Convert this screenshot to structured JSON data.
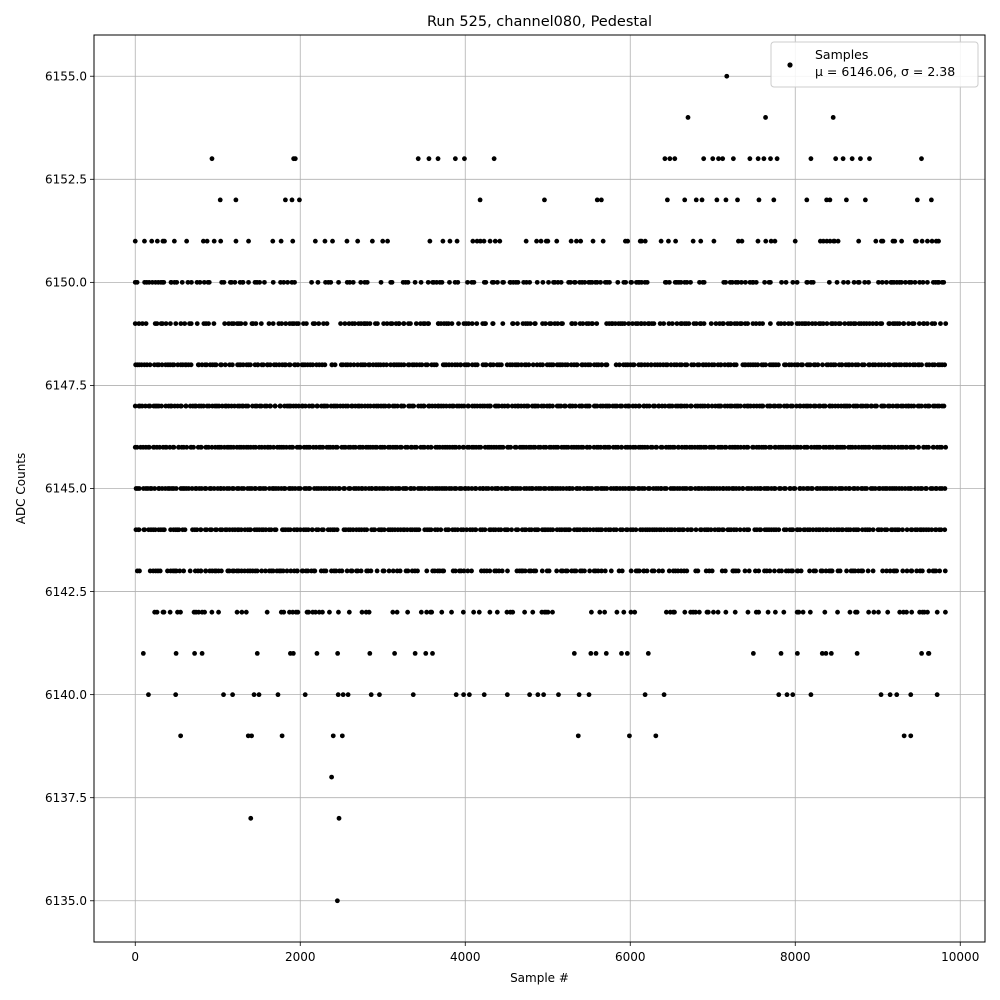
{
  "chart_data": {
    "type": "scatter",
    "title": "Run 525, channel080, Pedestal",
    "xlabel": "Sample #",
    "ylabel": "ADC Counts",
    "xlim": [
      -500,
      10300
    ],
    "ylim": [
      6134,
      6156
    ],
    "xticks": [
      0,
      2000,
      4000,
      6000,
      8000,
      10000
    ],
    "yticks": [
      6135.0,
      6137.5,
      6140.0,
      6142.5,
      6145.0,
      6147.5,
      6150.0,
      6152.5,
      6155.0
    ],
    "xtick_labels": [
      "0",
      "2000",
      "4000",
      "6000",
      "8000",
      "10000"
    ],
    "ytick_labels": [
      "6135.0",
      "6137.5",
      "6140.0",
      "6142.5",
      "6145.0",
      "6147.5",
      "6150.0",
      "6152.5",
      "6155.0"
    ],
    "grid": true,
    "legend_position": "top-right",
    "marker_color": "#000000",
    "x_range": [
      0,
      9830
    ],
    "sample_count": 9830,
    "series": [
      {
        "name": "Samples",
        "stats_label": "μ = 6146.06, σ = 2.38",
        "band_levels": [
          6141,
          6142,
          6143,
          6144,
          6145,
          6146,
          6147,
          6148,
          6149,
          6150,
          6151
        ],
        "band_density": [
          0.12,
          0.3,
          0.7,
          0.95,
          1.0,
          1.0,
          1.0,
          0.92,
          0.75,
          0.55,
          0.25
        ],
        "points": [
          {
            "x": 930,
            "y": 6153
          },
          {
            "x": 1920,
            "y": 6153
          },
          {
            "x": 1940,
            "y": 6153
          },
          {
            "x": 3430,
            "y": 6153
          },
          {
            "x": 3560,
            "y": 6153
          },
          {
            "x": 3670,
            "y": 6153
          },
          {
            "x": 3880,
            "y": 6153
          },
          {
            "x": 3990,
            "y": 6153
          },
          {
            "x": 4350,
            "y": 6153
          },
          {
            "x": 6420,
            "y": 6153
          },
          {
            "x": 6480,
            "y": 6153
          },
          {
            "x": 6540,
            "y": 6153
          },
          {
            "x": 6890,
            "y": 6153
          },
          {
            "x": 7000,
            "y": 6153
          },
          {
            "x": 7070,
            "y": 6153
          },
          {
            "x": 7120,
            "y": 6153
          },
          {
            "x": 7250,
            "y": 6153
          },
          {
            "x": 7450,
            "y": 6153
          },
          {
            "x": 7550,
            "y": 6153
          },
          {
            "x": 7620,
            "y": 6153
          },
          {
            "x": 7700,
            "y": 6153
          },
          {
            "x": 7780,
            "y": 6153
          },
          {
            "x": 8190,
            "y": 6153
          },
          {
            "x": 8490,
            "y": 6153
          },
          {
            "x": 8580,
            "y": 6153
          },
          {
            "x": 8690,
            "y": 6153
          },
          {
            "x": 8790,
            "y": 6153
          },
          {
            "x": 8900,
            "y": 6153
          },
          {
            "x": 9530,
            "y": 6153
          },
          {
            "x": 1030,
            "y": 6152
          },
          {
            "x": 1220,
            "y": 6152
          },
          {
            "x": 1820,
            "y": 6152
          },
          {
            "x": 1900,
            "y": 6152
          },
          {
            "x": 1990,
            "y": 6152
          },
          {
            "x": 4180,
            "y": 6152
          },
          {
            "x": 4960,
            "y": 6152
          },
          {
            "x": 5600,
            "y": 6152
          },
          {
            "x": 5650,
            "y": 6152
          },
          {
            "x": 6450,
            "y": 6152
          },
          {
            "x": 6660,
            "y": 6152
          },
          {
            "x": 6800,
            "y": 6152
          },
          {
            "x": 6870,
            "y": 6152
          },
          {
            "x": 7050,
            "y": 6152
          },
          {
            "x": 7160,
            "y": 6152
          },
          {
            "x": 7300,
            "y": 6152
          },
          {
            "x": 7560,
            "y": 6152
          },
          {
            "x": 7740,
            "y": 6152
          },
          {
            "x": 8140,
            "y": 6152
          },
          {
            "x": 8380,
            "y": 6152
          },
          {
            "x": 8420,
            "y": 6152
          },
          {
            "x": 8620,
            "y": 6152
          },
          {
            "x": 8850,
            "y": 6152
          },
          {
            "x": 9480,
            "y": 6152
          },
          {
            "x": 9650,
            "y": 6152
          },
          {
            "x": 6700,
            "y": 6154
          },
          {
            "x": 7640,
            "y": 6154
          },
          {
            "x": 8460,
            "y": 6154
          },
          {
            "x": 7170,
            "y": 6155
          },
          {
            "x": 160,
            "y": 6140
          },
          {
            "x": 490,
            "y": 6140
          },
          {
            "x": 1070,
            "y": 6140
          },
          {
            "x": 1180,
            "y": 6140
          },
          {
            "x": 1440,
            "y": 6140
          },
          {
            "x": 1500,
            "y": 6140
          },
          {
            "x": 1730,
            "y": 6140
          },
          {
            "x": 2060,
            "y": 6140
          },
          {
            "x": 2460,
            "y": 6140
          },
          {
            "x": 2520,
            "y": 6140
          },
          {
            "x": 2580,
            "y": 6140
          },
          {
            "x": 2860,
            "y": 6140
          },
          {
            "x": 2960,
            "y": 6140
          },
          {
            "x": 3370,
            "y": 6140
          },
          {
            "x": 3890,
            "y": 6140
          },
          {
            "x": 3980,
            "y": 6140
          },
          {
            "x": 4050,
            "y": 6140
          },
          {
            "x": 4230,
            "y": 6140
          },
          {
            "x": 4510,
            "y": 6140
          },
          {
            "x": 4780,
            "y": 6140
          },
          {
            "x": 4880,
            "y": 6140
          },
          {
            "x": 4950,
            "y": 6140
          },
          {
            "x": 5130,
            "y": 6140
          },
          {
            "x": 5380,
            "y": 6140
          },
          {
            "x": 5500,
            "y": 6140
          },
          {
            "x": 6180,
            "y": 6140
          },
          {
            "x": 6410,
            "y": 6140
          },
          {
            "x": 7800,
            "y": 6140
          },
          {
            "x": 7900,
            "y": 6140
          },
          {
            "x": 7970,
            "y": 6140
          },
          {
            "x": 8190,
            "y": 6140
          },
          {
            "x": 9040,
            "y": 6140
          },
          {
            "x": 9150,
            "y": 6140
          },
          {
            "x": 9230,
            "y": 6140
          },
          {
            "x": 9400,
            "y": 6140
          },
          {
            "x": 9720,
            "y": 6140
          },
          {
            "x": 550,
            "y": 6139
          },
          {
            "x": 1370,
            "y": 6139
          },
          {
            "x": 1410,
            "y": 6139
          },
          {
            "x": 1780,
            "y": 6139
          },
          {
            "x": 2400,
            "y": 6139
          },
          {
            "x": 2510,
            "y": 6139
          },
          {
            "x": 5370,
            "y": 6139
          },
          {
            "x": 5990,
            "y": 6139
          },
          {
            "x": 6310,
            "y": 6139
          },
          {
            "x": 9320,
            "y": 6139
          },
          {
            "x": 9400,
            "y": 6139
          },
          {
            "x": 2380,
            "y": 6138
          },
          {
            "x": 1400,
            "y": 6137
          },
          {
            "x": 2470,
            "y": 6137
          },
          {
            "x": 2450,
            "y": 6135
          }
        ]
      }
    ]
  }
}
